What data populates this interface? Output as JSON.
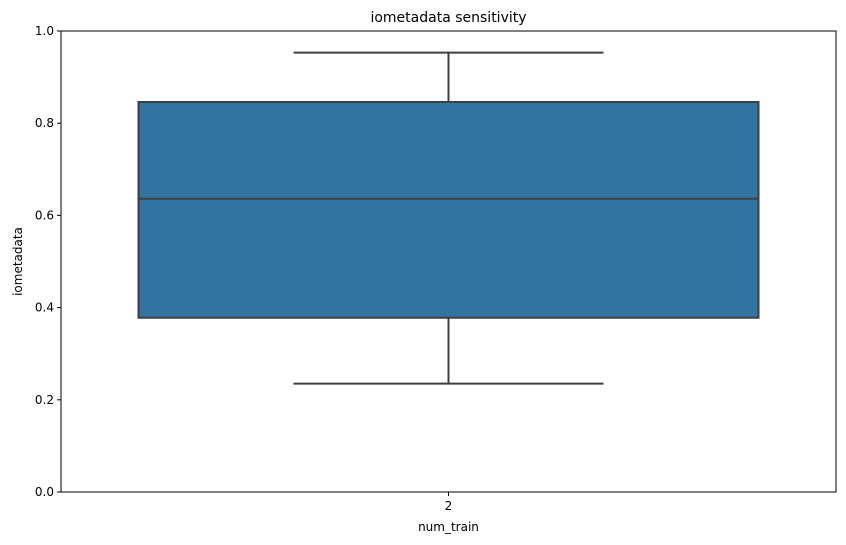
{
  "chart_data": {
    "type": "box",
    "title": "iometadata sensitivity",
    "xlabel": "num_train",
    "ylabel": "iometadata",
    "ylim": [
      0,
      1
    ],
    "yticks": [
      "0.0",
      "0.2",
      "0.4",
      "0.6",
      "0.8",
      "1.0"
    ],
    "categories": [
      "2"
    ],
    "boxes": [
      {
        "category": "2",
        "whisker_low": 0.235,
        "q1": 0.378,
        "median": 0.636,
        "q3": 0.846,
        "whisker_high": 0.953
      }
    ],
    "grid": false,
    "colors": {
      "box_fill": "#3274a1",
      "lines": "#3f3f3f",
      "axes": "#000000"
    }
  }
}
